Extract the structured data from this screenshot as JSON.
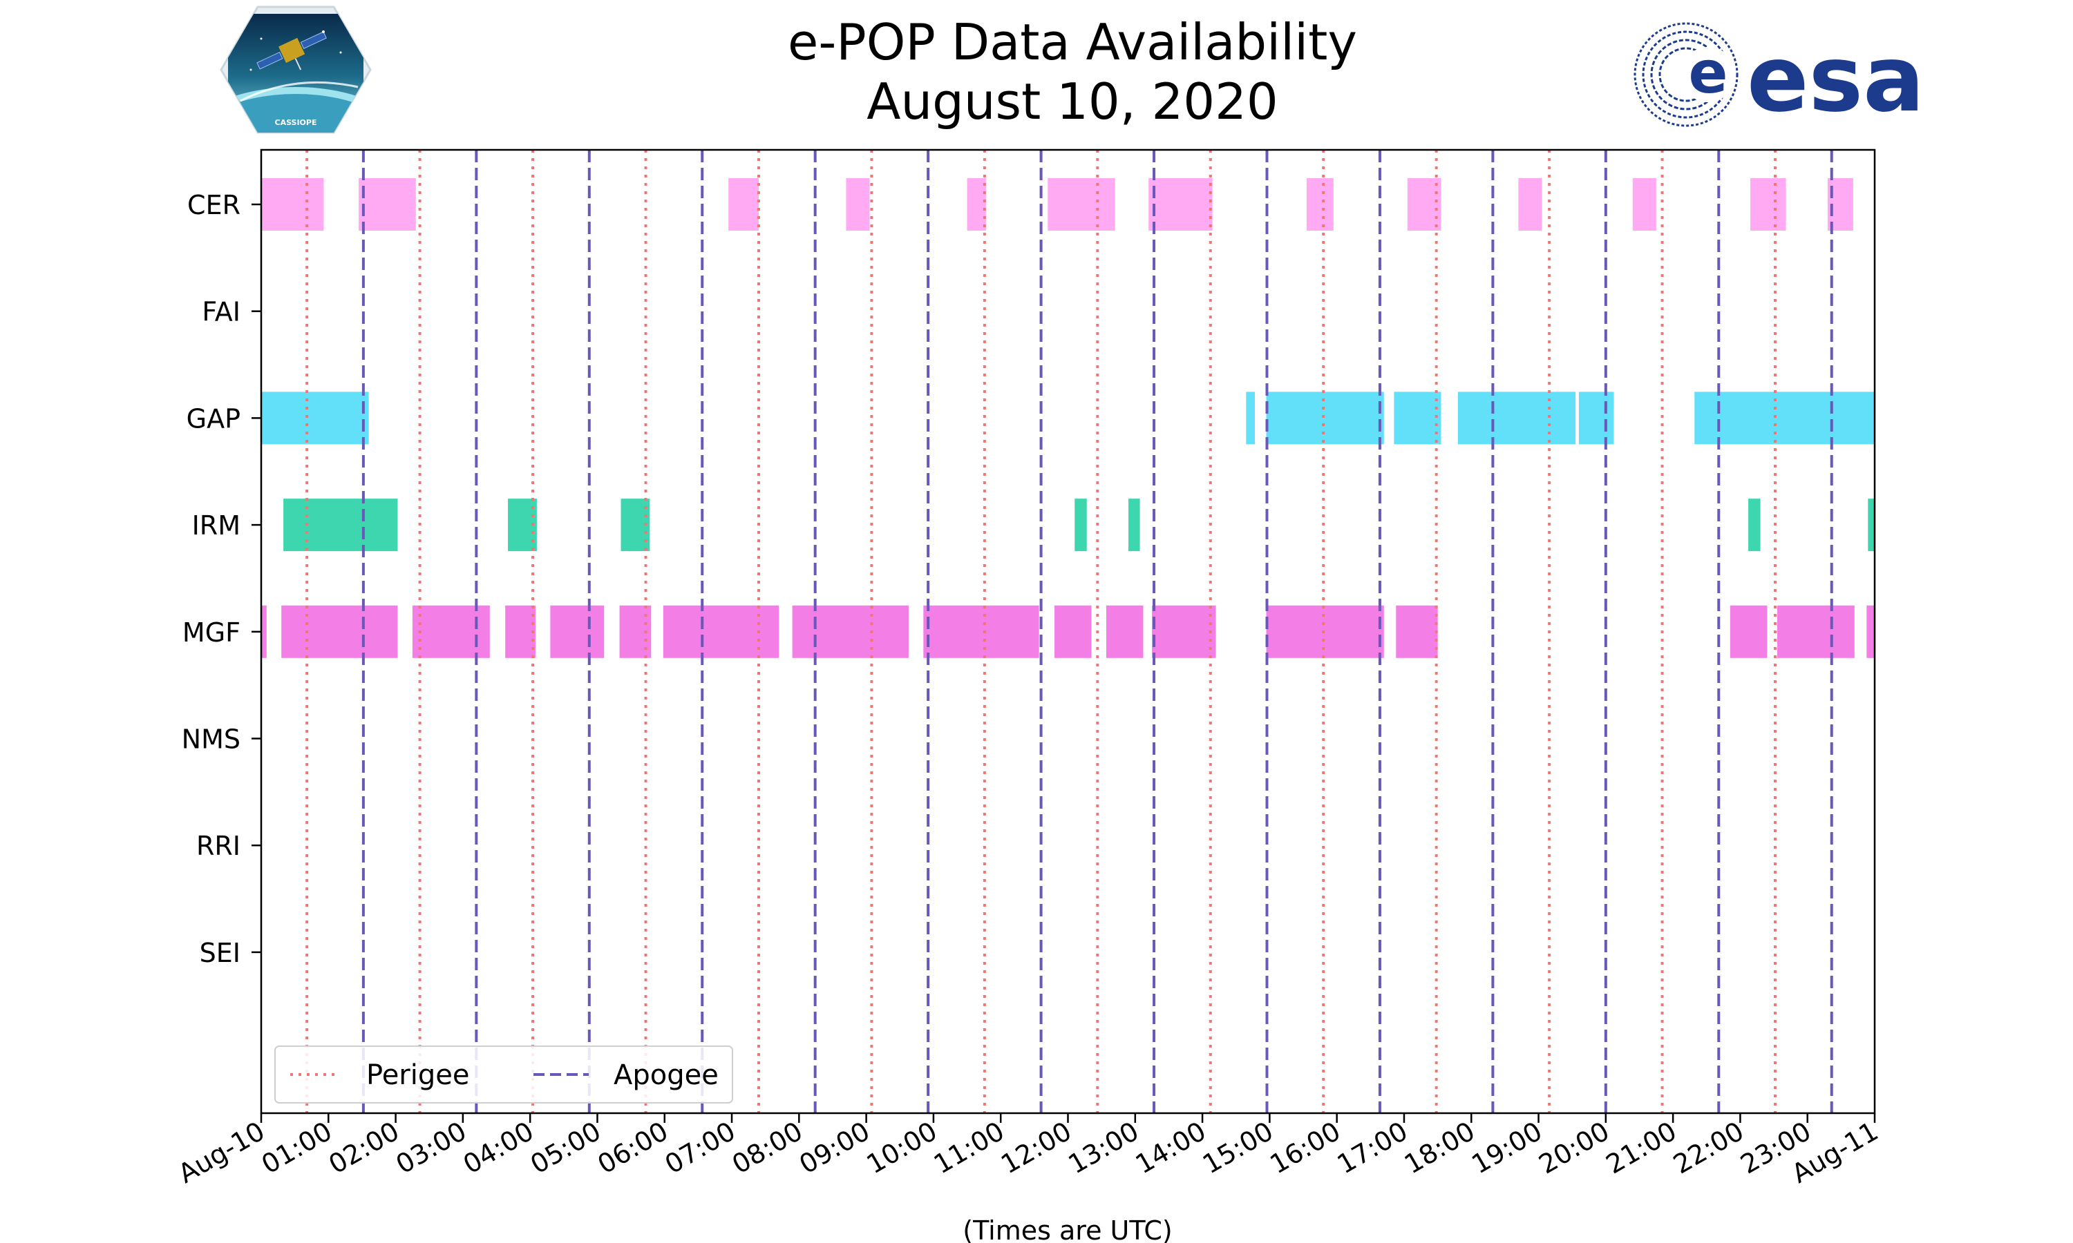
{
  "chart_data": {
    "type": "timeline",
    "title": "e-POP Data Availability",
    "subtitle": "August 10, 2020",
    "xlabel": "(Times are UTC)",
    "xlim_hours": [
      0,
      24
    ],
    "x_tick_labels": [
      "Aug-10",
      "01:00",
      "02:00",
      "03:00",
      "04:00",
      "05:00",
      "06:00",
      "07:00",
      "08:00",
      "09:00",
      "10:00",
      "11:00",
      "12:00",
      "13:00",
      "14:00",
      "15:00",
      "16:00",
      "17:00",
      "18:00",
      "19:00",
      "20:00",
      "21:00",
      "22:00",
      "23:00",
      "Aug-11"
    ],
    "instruments": [
      "CER",
      "FAI",
      "GAP",
      "IRM",
      "MGF",
      "NMS",
      "RRI",
      "SEI"
    ],
    "colors": {
      "CER": "#ffaaf3",
      "GAP": "#62e0fa",
      "IRM": "#3dd6ae",
      "MGF": "#f27ee6",
      "perigee": "#f07575",
      "apogee": "#6a58b8"
    },
    "intervals": {
      "CER": [
        [
          0.0,
          0.93
        ],
        [
          1.45,
          2.3
        ],
        [
          6.95,
          7.4
        ],
        [
          8.7,
          9.05
        ],
        [
          10.5,
          10.78
        ],
        [
          11.7,
          12.7
        ],
        [
          13.2,
          14.15
        ],
        [
          15.55,
          15.95
        ],
        [
          17.05,
          17.55
        ],
        [
          18.7,
          19.05
        ],
        [
          20.4,
          20.75
        ],
        [
          22.15,
          22.68
        ],
        [
          23.3,
          23.68
        ]
      ],
      "FAI": [],
      "GAP": [
        [
          0.0,
          1.6
        ],
        [
          14.65,
          14.78
        ],
        [
          14.95,
          16.7
        ],
        [
          16.85,
          17.55
        ],
        [
          17.8,
          19.55
        ],
        [
          19.6,
          20.12
        ],
        [
          21.32,
          24.0
        ]
      ],
      "IRM": [
        [
          0.33,
          2.03
        ],
        [
          3.67,
          4.1
        ],
        [
          5.35,
          5.78
        ],
        [
          12.1,
          12.28
        ],
        [
          12.9,
          13.07
        ],
        [
          22.12,
          22.3
        ],
        [
          23.9,
          24.0
        ]
      ],
      "MGF": [
        [
          0.0,
          0.08
        ],
        [
          0.3,
          2.03
        ],
        [
          2.25,
          3.4
        ],
        [
          3.63,
          4.08
        ],
        [
          4.3,
          5.1
        ],
        [
          5.33,
          5.8
        ],
        [
          5.98,
          7.7
        ],
        [
          7.9,
          9.63
        ],
        [
          9.85,
          11.57
        ],
        [
          11.8,
          12.35
        ],
        [
          12.57,
          13.12
        ],
        [
          13.25,
          14.2
        ],
        [
          14.95,
          16.7
        ],
        [
          16.88,
          17.5
        ],
        [
          21.85,
          22.4
        ],
        [
          22.55,
          23.7
        ],
        [
          23.88,
          24.0
        ]
      ],
      "NMS": [],
      "RRI": [],
      "SEI": []
    },
    "perigee_hours": [
      0.68,
      2.36,
      4.04,
      5.72,
      7.4,
      9.08,
      10.76,
      12.44,
      14.12,
      15.8,
      17.48,
      19.16,
      20.84,
      22.52
    ],
    "apogee_hours": [
      1.52,
      3.2,
      4.88,
      6.56,
      8.24,
      9.92,
      11.6,
      13.28,
      14.96,
      16.64,
      18.32,
      20.0,
      21.68,
      23.36
    ],
    "legend": {
      "position": "lower-left",
      "entries": [
        "Perigee",
        "Apogee"
      ]
    }
  },
  "logos": {
    "left_caption": "CASSIOPE",
    "right_wordmark": "esa"
  }
}
